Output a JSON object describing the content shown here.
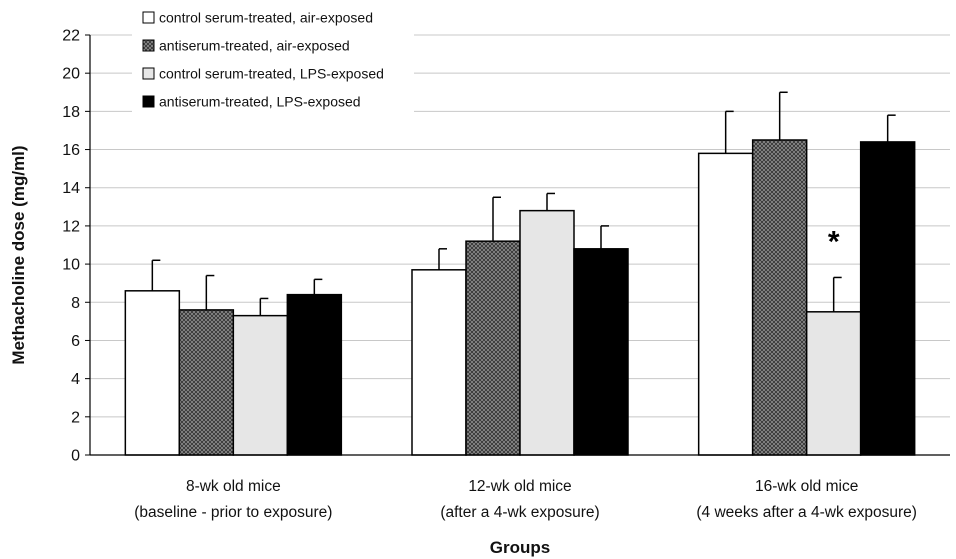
{
  "chart_data": {
    "type": "bar",
    "title": "",
    "xlabel": "Groups",
    "ylabel": "Methacholine dose (mg/ml)",
    "ylim": [
      0,
      22
    ],
    "yticks": [
      0,
      2,
      4,
      6,
      8,
      10,
      12,
      14,
      16,
      18,
      20,
      22
    ],
    "grid": true,
    "legend_position": "top-left",
    "categories": [
      [
        "8-wk old mice",
        "(baseline - prior to exposure)"
      ],
      [
        "12-wk old mice",
        "(after a 4-wk exposure)"
      ],
      [
        "16-wk old mice",
        "(4 weeks after a 4-wk exposure)"
      ]
    ],
    "series": [
      {
        "name": "control serum-treated, air-exposed",
        "values": [
          8.6,
          9.7,
          15.8
        ],
        "errors": [
          1.6,
          1.1,
          2.2
        ],
        "fill": "#ffffff",
        "pattern": "none"
      },
      {
        "name": "antiserum-treated, air-exposed",
        "values": [
          7.6,
          11.2,
          16.5
        ],
        "errors": [
          1.8,
          2.3,
          2.5
        ],
        "fill": "#666666",
        "pattern": "crosshatch"
      },
      {
        "name": "control serum-treated, LPS-exposed",
        "values": [
          7.3,
          12.8,
          7.5
        ],
        "errors": [
          0.9,
          0.9,
          1.8
        ],
        "fill": "#e6e6e6",
        "pattern": "none"
      },
      {
        "name": "antiserum-treated, LPS-exposed",
        "values": [
          8.4,
          10.8,
          16.4
        ],
        "errors": [
          0.8,
          1.2,
          1.4
        ],
        "fill": "#000000",
        "pattern": "none"
      }
    ],
    "annotations": [
      {
        "text": "*",
        "category_index": 2,
        "series_index": 2,
        "y": 11.5
      }
    ]
  }
}
